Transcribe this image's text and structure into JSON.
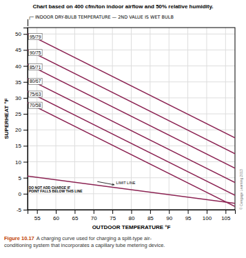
{
  "chart_data": {
    "type": "line",
    "title": "Chart based on 400 cfm/ton indoor airflow and 50% relative humidity.",
    "subtitle": "┌─ INDOOR DRY-BULB TEMPERATURE — 2ND VALUE IS WET BULB",
    "xlabel": "OUTDOOR TEMPERATURE °F",
    "ylabel": "SUPERHEAT °F",
    "xlim": [
      52.5,
      107.5
    ],
    "ylim": [
      -5,
      52
    ],
    "xticks": [
      55,
      60,
      65,
      70,
      75,
      80,
      85,
      90,
      95,
      100,
      105
    ],
    "yticks": [
      -5,
      0,
      5,
      10,
      15,
      20,
      25,
      30,
      35,
      40,
      45,
      50
    ],
    "grid": true,
    "series": [
      {
        "name": "95/79",
        "color": "#8B2252",
        "x": [
          52.5,
          107.5
        ],
        "values": [
          50.0,
          17.5
        ]
      },
      {
        "name": "90/75",
        "color": "#8B2252",
        "x": [
          52.5,
          107.5
        ],
        "values": [
          45.0,
          12.5
        ]
      },
      {
        "name": "85/71",
        "color": "#8B2252",
        "x": [
          52.5,
          107.5
        ],
        "values": [
          40.5,
          8.0
        ]
      },
      {
        "name": "80/67",
        "color": "#8B2252",
        "x": [
          52.5,
          107.5
        ],
        "values": [
          36.0,
          3.5
        ]
      },
      {
        "name": "75/63",
        "color": "#8B2252",
        "x": [
          52.5,
          107.5
        ],
        "values": [
          32.0,
          -0.5
        ]
      },
      {
        "name": "70/58",
        "color": "#8B2252",
        "x": [
          52.5,
          107.5
        ],
        "values": [
          28.5,
          -4.0
        ]
      },
      {
        "color": "#8B2252",
        "x": [
          52.5,
          107.5
        ],
        "values": [
          5.5,
          -3.0
        ]
      }
    ],
    "annotations": [
      {
        "text": "LIMIT LINE",
        "x": 76,
        "y": 3.2,
        "arrow_from": [
          71.0,
          3.8
        ],
        "arrow_to": [
          75.5,
          2.8
        ]
      },
      {
        "text": "DO NOT ADD CHARGE IF",
        "x": 52.8,
        "y": 1.8
      },
      {
        "text": "POINT FALLS BELOW THIS LINE",
        "x": 52.8,
        "y": 0.6
      }
    ],
    "caption_bold": "Figure 10.17",
    "caption": "A charging curve used for charging a split-type air-\nconditioning system that incorporates a capillary tube metering device.",
    "copyright": "© Cengage Learning 2013"
  }
}
